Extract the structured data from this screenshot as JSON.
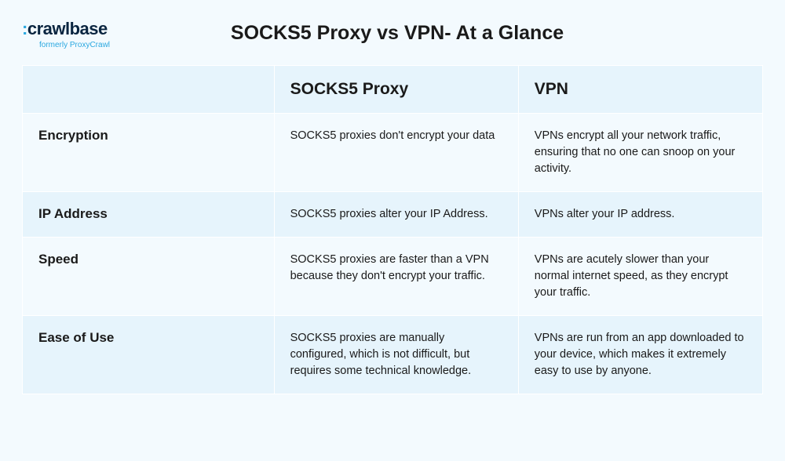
{
  "logo": {
    "prefix_glyph": ":",
    "name_part1": "crawl",
    "name_part2": "base",
    "subtitle": "formerly ProxyCrawl",
    "accent_color": "#2aa8e0",
    "text_color": "#0a2540"
  },
  "title": "SOCKS5 Proxy vs VPN- At a Glance",
  "table": {
    "columns": [
      "",
      "SOCKS5 Proxy",
      "VPN"
    ],
    "rows": [
      {
        "label": "Encryption",
        "a": "SOCKS5 proxies don't encrypt your data",
        "b": "VPNs encrypt all your network traffic, ensuring that no one can snoop on your activity.",
        "shade": "light"
      },
      {
        "label": "IP Address",
        "a": "SOCKS5 proxies alter your IP Address.",
        "b": "VPNs alter your IP address.",
        "shade": "shade"
      },
      {
        "label": "Speed",
        "a": "SOCKS5 proxies are faster than a VPN because they don't encrypt your traffic.",
        "b": "VPNs are acutely slower than your normal internet speed, as they encrypt your traffic.",
        "shade": "light"
      },
      {
        "label": "Ease of Use",
        "a": "SOCKS5 proxies are manually configured, which is not difficult, but requires some technical knowledge.",
        "b": "VPNs are run from an app downloaded to your device, which makes it extremely easy to use by anyone.",
        "shade": "shade"
      }
    ],
    "header_bg": "#e6f4fc",
    "light_bg": "#f3fafe",
    "shade_bg": "#e6f4fc",
    "border_color": "#ffffff",
    "header_fontsize": 21,
    "label_fontsize": 17,
    "cell_fontsize": 14.5
  },
  "page_bg": "#f3fafe"
}
